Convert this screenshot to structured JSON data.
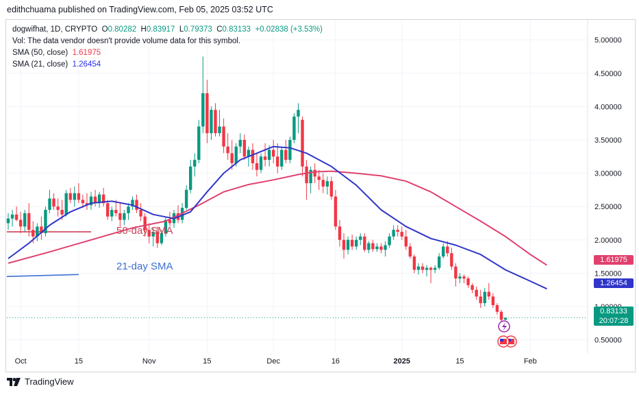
{
  "header": {
    "publisher_line": "edithchuama published on TradingView.com, Feb 05, 2025 03:52 UTC"
  },
  "legend": {
    "symbol": "dogwifhat, 1D, CRYPTO",
    "o_label": "O",
    "o_value": "0.80282",
    "h_label": "H",
    "h_value": "0.83917",
    "l_label": "L",
    "l_value": "0.79373",
    "c_label": "C",
    "c_value": "0.83133",
    "change": "+0.02838 (+3.53%)",
    "vol_note": "Vol: The data vendor doesn't provide volume data for this symbol.",
    "sma50_label": "SMA (50, close)",
    "sma50_value": "1.61975",
    "sma21_label": "SMA (21, close)",
    "sma21_value": "1.26454"
  },
  "annotations": {
    "sma50_text": "50-day SMA",
    "sma21_text": "21-day SMA"
  },
  "badges": {
    "sma50": "1.61975",
    "sma21": "1.26454",
    "price": "0.83133",
    "countdown": "20:07:28"
  },
  "footer": {
    "brand": "TradingView"
  },
  "colors": {
    "up": "#089981",
    "down": "#f23645",
    "sma50": "#e0406d",
    "sma21": "#2f35c8",
    "annot_red": "#c94055",
    "annot_blue": "#3b6fd1",
    "grid": "#f0f3fa"
  },
  "chart_data": {
    "type": "candlestick",
    "title": "dogwifhat, 1D, CRYPTO",
    "ylim": [
      0.3,
      5.3
    ],
    "y_ticks": [
      {
        "value": 5.0,
        "label": "5.00000"
      },
      {
        "value": 4.5,
        "label": "4.50000"
      },
      {
        "value": 4.0,
        "label": "4.00000"
      },
      {
        "value": 3.5,
        "label": "3.50000"
      },
      {
        "value": 3.0,
        "label": "3.00000"
      },
      {
        "value": 2.5,
        "label": "2.50000"
      },
      {
        "value": 2.0,
        "label": "2.00000"
      },
      {
        "value": 1.5,
        "label": "1.50000"
      },
      {
        "value": 1.0,
        "label": "1.00000"
      },
      {
        "value": 0.5,
        "label": "0.50000"
      }
    ],
    "x_ticks": [
      {
        "index": 3,
        "label": "Oct",
        "bold": false
      },
      {
        "index": 17,
        "label": "15",
        "bold": false
      },
      {
        "index": 34,
        "label": "Nov",
        "bold": false
      },
      {
        "index": 48,
        "label": "15",
        "bold": false
      },
      {
        "index": 64,
        "label": "Dec",
        "bold": false
      },
      {
        "index": 79,
        "label": "16",
        "bold": false
      },
      {
        "index": 95,
        "label": "2025",
        "bold": true
      },
      {
        "index": 109,
        "label": "15",
        "bold": false
      },
      {
        "index": 126,
        "label": "Feb",
        "bold": false
      }
    ],
    "current_price": 0.83133,
    "annotation_lines": [
      {
        "name": "50-day",
        "from": [
          0,
          2.12
        ],
        "to": [
          20,
          2.12
        ],
        "color": "#c94055"
      },
      {
        "name": "21-day",
        "from": [
          0,
          1.45
        ],
        "to": [
          17,
          1.48
        ],
        "color": "#3b6fd1"
      }
    ],
    "candles": [
      {
        "o": 2.25,
        "h": 2.4,
        "l": 2.15,
        "c": 2.32
      },
      {
        "o": 2.32,
        "h": 2.45,
        "l": 2.2,
        "c": 2.38
      },
      {
        "o": 2.38,
        "h": 2.5,
        "l": 2.28,
        "c": 2.3
      },
      {
        "o": 2.3,
        "h": 2.42,
        "l": 2.1,
        "c": 2.2
      },
      {
        "o": 2.2,
        "h": 2.45,
        "l": 2.12,
        "c": 2.4
      },
      {
        "o": 2.4,
        "h": 2.55,
        "l": 2.05,
        "c": 2.15
      },
      {
        "o": 2.15,
        "h": 2.28,
        "l": 1.95,
        "c": 2.05
      },
      {
        "o": 2.05,
        "h": 2.25,
        "l": 1.98,
        "c": 2.2
      },
      {
        "o": 2.2,
        "h": 2.35,
        "l": 2.0,
        "c": 2.1
      },
      {
        "o": 2.1,
        "h": 2.5,
        "l": 2.05,
        "c": 2.45
      },
      {
        "o": 2.45,
        "h": 2.75,
        "l": 2.4,
        "c": 2.62
      },
      {
        "o": 2.62,
        "h": 2.7,
        "l": 2.45,
        "c": 2.5
      },
      {
        "o": 2.5,
        "h": 2.62,
        "l": 2.35,
        "c": 2.45
      },
      {
        "o": 2.45,
        "h": 2.6,
        "l": 2.3,
        "c": 2.38
      },
      {
        "o": 2.38,
        "h": 2.75,
        "l": 2.35,
        "c": 2.7
      },
      {
        "o": 2.7,
        "h": 2.78,
        "l": 2.55,
        "c": 2.6
      },
      {
        "o": 2.6,
        "h": 2.8,
        "l": 2.5,
        "c": 2.7
      },
      {
        "o": 2.7,
        "h": 2.85,
        "l": 2.55,
        "c": 2.6
      },
      {
        "o": 2.6,
        "h": 2.68,
        "l": 2.48,
        "c": 2.55
      },
      {
        "o": 2.55,
        "h": 2.7,
        "l": 2.45,
        "c": 2.52
      },
      {
        "o": 2.52,
        "h": 2.72,
        "l": 2.45,
        "c": 2.65
      },
      {
        "o": 2.65,
        "h": 2.75,
        "l": 2.5,
        "c": 2.55
      },
      {
        "o": 2.55,
        "h": 2.72,
        "l": 2.48,
        "c": 2.68
      },
      {
        "o": 2.68,
        "h": 2.78,
        "l": 2.5,
        "c": 2.55
      },
      {
        "o": 2.55,
        "h": 2.6,
        "l": 2.3,
        "c": 2.35
      },
      {
        "o": 2.35,
        "h": 2.5,
        "l": 2.28,
        "c": 2.45
      },
      {
        "o": 2.45,
        "h": 2.6,
        "l": 2.35,
        "c": 2.4
      },
      {
        "o": 2.4,
        "h": 2.55,
        "l": 2.2,
        "c": 2.3
      },
      {
        "o": 2.3,
        "h": 2.45,
        "l": 2.22,
        "c": 2.4
      },
      {
        "o": 2.4,
        "h": 2.55,
        "l": 2.3,
        "c": 2.5
      },
      {
        "o": 2.5,
        "h": 2.65,
        "l": 2.45,
        "c": 2.6
      },
      {
        "o": 2.6,
        "h": 2.68,
        "l": 2.4,
        "c": 2.45
      },
      {
        "o": 2.45,
        "h": 2.55,
        "l": 2.28,
        "c": 2.35
      },
      {
        "o": 2.35,
        "h": 2.4,
        "l": 2.05,
        "c": 2.15
      },
      {
        "o": 2.15,
        "h": 2.25,
        "l": 1.95,
        "c": 2.05
      },
      {
        "o": 2.05,
        "h": 2.18,
        "l": 1.9,
        "c": 2.12
      },
      {
        "o": 2.12,
        "h": 2.2,
        "l": 1.88,
        "c": 1.95
      },
      {
        "o": 1.95,
        "h": 2.15,
        "l": 1.92,
        "c": 2.1
      },
      {
        "o": 2.1,
        "h": 2.35,
        "l": 2.05,
        "c": 2.3
      },
      {
        "o": 2.3,
        "h": 2.42,
        "l": 2.2,
        "c": 2.25
      },
      {
        "o": 2.25,
        "h": 2.45,
        "l": 2.18,
        "c": 2.4
      },
      {
        "o": 2.4,
        "h": 2.52,
        "l": 2.25,
        "c": 2.3
      },
      {
        "o": 2.3,
        "h": 2.55,
        "l": 2.25,
        "c": 2.48
      },
      {
        "o": 2.48,
        "h": 2.82,
        "l": 2.45,
        "c": 2.75
      },
      {
        "o": 2.75,
        "h": 3.2,
        "l": 2.7,
        "c": 3.1
      },
      {
        "o": 3.1,
        "h": 3.3,
        "l": 2.95,
        "c": 3.2
      },
      {
        "o": 3.2,
        "h": 3.8,
        "l": 3.15,
        "c": 3.7
      },
      {
        "o": 3.7,
        "h": 4.75,
        "l": 3.6,
        "c": 4.2
      },
      {
        "o": 4.2,
        "h": 4.4,
        "l": 3.45,
        "c": 3.6
      },
      {
        "o": 3.6,
        "h": 4.0,
        "l": 3.5,
        "c": 3.95
      },
      {
        "o": 3.95,
        "h": 4.05,
        "l": 3.55,
        "c": 3.6
      },
      {
        "o": 3.6,
        "h": 3.95,
        "l": 3.55,
        "c": 3.7
      },
      {
        "o": 3.7,
        "h": 3.82,
        "l": 3.3,
        "c": 3.4
      },
      {
        "o": 3.4,
        "h": 3.6,
        "l": 3.2,
        "c": 3.3
      },
      {
        "o": 3.3,
        "h": 3.5,
        "l": 3.05,
        "c": 3.15
      },
      {
        "o": 3.15,
        "h": 3.45,
        "l": 3.1,
        "c": 3.4
      },
      {
        "o": 3.4,
        "h": 3.6,
        "l": 3.3,
        "c": 3.5
      },
      {
        "o": 3.5,
        "h": 3.58,
        "l": 3.2,
        "c": 3.25
      },
      {
        "o": 3.25,
        "h": 3.4,
        "l": 3.1,
        "c": 3.35
      },
      {
        "o": 3.35,
        "h": 3.45,
        "l": 3.05,
        "c": 3.15
      },
      {
        "o": 3.15,
        "h": 3.3,
        "l": 2.95,
        "c": 3.05
      },
      {
        "o": 3.05,
        "h": 3.3,
        "l": 3.0,
        "c": 3.25
      },
      {
        "o": 3.25,
        "h": 3.45,
        "l": 3.1,
        "c": 3.2
      },
      {
        "o": 3.2,
        "h": 3.42,
        "l": 3.1,
        "c": 3.35
      },
      {
        "o": 3.35,
        "h": 3.5,
        "l": 3.15,
        "c": 3.25
      },
      {
        "o": 3.25,
        "h": 3.45,
        "l": 3.0,
        "c": 3.1
      },
      {
        "o": 3.1,
        "h": 3.4,
        "l": 3.05,
        "c": 3.35
      },
      {
        "o": 3.35,
        "h": 3.5,
        "l": 3.15,
        "c": 3.2
      },
      {
        "o": 3.2,
        "h": 3.55,
        "l": 3.15,
        "c": 3.5
      },
      {
        "o": 3.5,
        "h": 3.9,
        "l": 3.45,
        "c": 3.85
      },
      {
        "o": 3.85,
        "h": 4.05,
        "l": 3.6,
        "c": 3.95
      },
      {
        "o": 3.8,
        "h": 3.85,
        "l": 2.95,
        "c": 3.1
      },
      {
        "o": 3.1,
        "h": 3.2,
        "l": 2.6,
        "c": 2.85
      },
      {
        "o": 2.85,
        "h": 3.1,
        "l": 2.7,
        "c": 3.05
      },
      {
        "o": 3.05,
        "h": 3.15,
        "l": 2.85,
        "c": 2.95
      },
      {
        "o": 2.95,
        "h": 3.05,
        "l": 2.75,
        "c": 2.9
      },
      {
        "o": 2.9,
        "h": 3.0,
        "l": 2.7,
        "c": 2.8
      },
      {
        "o": 2.8,
        "h": 2.95,
        "l": 2.68,
        "c": 2.88
      },
      {
        "o": 2.88,
        "h": 2.95,
        "l": 2.6,
        "c": 2.65
      },
      {
        "o": 2.65,
        "h": 2.75,
        "l": 2.15,
        "c": 2.2
      },
      {
        "o": 2.2,
        "h": 2.3,
        "l": 1.9,
        "c": 2.0
      },
      {
        "o": 2.0,
        "h": 2.1,
        "l": 1.72,
        "c": 1.85
      },
      {
        "o": 1.85,
        "h": 2.05,
        "l": 1.78,
        "c": 2.0
      },
      {
        "o": 2.0,
        "h": 2.08,
        "l": 1.85,
        "c": 1.9
      },
      {
        "o": 1.9,
        "h": 2.05,
        "l": 1.85,
        "c": 2.0
      },
      {
        "o": 2.0,
        "h": 2.1,
        "l": 1.92,
        "c": 2.05
      },
      {
        "o": 2.05,
        "h": 2.1,
        "l": 1.82,
        "c": 1.85
      },
      {
        "o": 1.85,
        "h": 1.98,
        "l": 1.8,
        "c": 1.95
      },
      {
        "o": 1.95,
        "h": 2.0,
        "l": 1.82,
        "c": 1.86
      },
      {
        "o": 1.86,
        "h": 1.95,
        "l": 1.82,
        "c": 1.9
      },
      {
        "o": 1.9,
        "h": 1.95,
        "l": 1.8,
        "c": 1.85
      },
      {
        "o": 1.85,
        "h": 1.98,
        "l": 1.75,
        "c": 1.92
      },
      {
        "o": 1.92,
        "h": 2.1,
        "l": 1.88,
        "c": 2.05
      },
      {
        "o": 2.05,
        "h": 2.22,
        "l": 2.0,
        "c": 2.15
      },
      {
        "o": 2.15,
        "h": 2.22,
        "l": 2.05,
        "c": 2.12
      },
      {
        "o": 2.12,
        "h": 2.2,
        "l": 2.0,
        "c": 2.05
      },
      {
        "o": 2.05,
        "h": 2.15,
        "l": 1.85,
        "c": 1.9
      },
      {
        "o": 1.9,
        "h": 1.95,
        "l": 1.72,
        "c": 1.75
      },
      {
        "o": 1.75,
        "h": 1.78,
        "l": 1.5,
        "c": 1.55
      },
      {
        "o": 1.55,
        "h": 1.65,
        "l": 1.48,
        "c": 1.6
      },
      {
        "o": 1.6,
        "h": 1.65,
        "l": 1.5,
        "c": 1.55
      },
      {
        "o": 1.55,
        "h": 1.62,
        "l": 1.45,
        "c": 1.58
      },
      {
        "o": 1.58,
        "h": 1.6,
        "l": 1.35,
        "c": 1.55
      },
      {
        "o": 1.55,
        "h": 1.62,
        "l": 1.5,
        "c": 1.58
      },
      {
        "o": 1.58,
        "h": 1.8,
        "l": 1.55,
        "c": 1.75
      },
      {
        "o": 1.75,
        "h": 1.95,
        "l": 1.72,
        "c": 1.9
      },
      {
        "o": 1.9,
        "h": 1.98,
        "l": 1.75,
        "c": 1.8
      },
      {
        "o": 1.8,
        "h": 1.88,
        "l": 1.55,
        "c": 1.6
      },
      {
        "o": 1.6,
        "h": 1.65,
        "l": 1.3,
        "c": 1.42
      },
      {
        "o": 1.42,
        "h": 1.5,
        "l": 1.35,
        "c": 1.45
      },
      {
        "o": 1.45,
        "h": 1.48,
        "l": 1.35,
        "c": 1.42
      },
      {
        "o": 1.42,
        "h": 1.45,
        "l": 1.28,
        "c": 1.32
      },
      {
        "o": 1.32,
        "h": 1.35,
        "l": 1.2,
        "c": 1.25
      },
      {
        "o": 1.25,
        "h": 1.3,
        "l": 1.1,
        "c": 1.15
      },
      {
        "o": 1.15,
        "h": 1.25,
        "l": 0.98,
        "c": 1.05
      },
      {
        "o": 1.05,
        "h": 1.28,
        "l": 1.0,
        "c": 1.22
      },
      {
        "o": 1.22,
        "h": 1.35,
        "l": 1.1,
        "c": 1.15
      },
      {
        "o": 1.15,
        "h": 1.2,
        "l": 0.98,
        "c": 1.02
      },
      {
        "o": 1.02,
        "h": 1.05,
        "l": 0.88,
        "c": 0.92
      },
      {
        "o": 0.92,
        "h": 0.95,
        "l": 0.75,
        "c": 0.8
      },
      {
        "o": 0.80282,
        "h": 0.83917,
        "l": 0.79373,
        "c": 0.83133
      }
    ],
    "sma50": [
      {
        "i": 0,
        "v": 1.65
      },
      {
        "i": 10,
        "v": 1.82
      },
      {
        "i": 20,
        "v": 2.0
      },
      {
        "i": 30,
        "v": 2.18
      },
      {
        "i": 38,
        "v": 2.28
      },
      {
        "i": 46,
        "v": 2.52
      },
      {
        "i": 52,
        "v": 2.72
      },
      {
        "i": 58,
        "v": 2.83
      },
      {
        "i": 64,
        "v": 2.9
      },
      {
        "i": 70,
        "v": 2.98
      },
      {
        "i": 74,
        "v": 3.02
      },
      {
        "i": 78,
        "v": 3.03
      },
      {
        "i": 84,
        "v": 3.0
      },
      {
        "i": 90,
        "v": 2.96
      },
      {
        "i": 96,
        "v": 2.88
      },
      {
        "i": 102,
        "v": 2.72
      },
      {
        "i": 108,
        "v": 2.5
      },
      {
        "i": 114,
        "v": 2.28
      },
      {
        "i": 120,
        "v": 2.05
      },
      {
        "i": 126,
        "v": 1.78
      },
      {
        "i": 130,
        "v": 1.62
      }
    ],
    "sma21": [
      {
        "i": 0,
        "v": 1.72
      },
      {
        "i": 5,
        "v": 1.95
      },
      {
        "i": 10,
        "v": 2.22
      },
      {
        "i": 15,
        "v": 2.42
      },
      {
        "i": 20,
        "v": 2.55
      },
      {
        "i": 25,
        "v": 2.58
      },
      {
        "i": 30,
        "v": 2.52
      },
      {
        "i": 35,
        "v": 2.38
      },
      {
        "i": 40,
        "v": 2.32
      },
      {
        "i": 44,
        "v": 2.42
      },
      {
        "i": 48,
        "v": 2.72
      },
      {
        "i": 52,
        "v": 3.0
      },
      {
        "i": 56,
        "v": 3.2
      },
      {
        "i": 60,
        "v": 3.3
      },
      {
        "i": 64,
        "v": 3.4
      },
      {
        "i": 68,
        "v": 3.38
      },
      {
        "i": 72,
        "v": 3.3
      },
      {
        "i": 78,
        "v": 3.1
      },
      {
        "i": 84,
        "v": 2.82
      },
      {
        "i": 90,
        "v": 2.45
      },
      {
        "i": 96,
        "v": 2.2
      },
      {
        "i": 102,
        "v": 2.02
      },
      {
        "i": 108,
        "v": 1.92
      },
      {
        "i": 114,
        "v": 1.78
      },
      {
        "i": 120,
        "v": 1.55
      },
      {
        "i": 126,
        "v": 1.38
      },
      {
        "i": 130,
        "v": 1.265
      }
    ]
  }
}
